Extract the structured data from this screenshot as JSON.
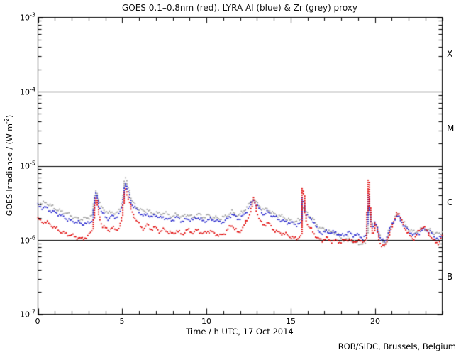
{
  "title": "GOES 0.1–0.8nm (red), LYRA Al (blue) & Zr (grey) proxy",
  "credit": "ROB/SIDC, Brussels, Belgium",
  "colors": {
    "red": "#e00000",
    "blue": "#2222cc",
    "grey": "#a0a0a0",
    "axis": "#000000",
    "background": "#ffffff"
  },
  "axes": {
    "x": {
      "label": "Time / h UTC, 17 Oct 2014",
      "range": [
        0,
        24
      ],
      "major_ticks": [
        0,
        5,
        10,
        15,
        20
      ],
      "minor_step": 1,
      "tick_labels": [
        "0",
        "5",
        "10",
        "15",
        "20"
      ]
    },
    "y": {
      "label_prefix": "GOES Irradiance / (W m",
      "label_sup": "-2",
      "label_suffix": ")",
      "scale": "log",
      "ticks": [
        {
          "base": "10",
          "exp": "-3"
        },
        {
          "base": "10",
          "exp": "-4"
        },
        {
          "base": "10",
          "exp": "-5"
        },
        {
          "base": "10",
          "exp": "-6"
        },
        {
          "base": "10",
          "exp": "-7"
        }
      ]
    }
  },
  "flare_classes": [
    {
      "label": "X",
      "band_exp": [
        -4,
        -3
      ]
    },
    {
      "label": "M",
      "band_exp": [
        -5,
        -4
      ]
    },
    {
      "label": "C",
      "band_exp": [
        -6,
        -5
      ]
    },
    {
      "label": "B",
      "band_exp": [
        -7,
        -6
      ]
    }
  ],
  "reference_lines_flux": [
    0.0001,
    1e-05,
    1e-06
  ],
  "chart_data": {
    "type": "scatter",
    "title": "GOES 0.1–0.8nm (red), LYRA Al (blue) & Zr (grey) proxy",
    "xlabel": "Time / h UTC, 17 Oct 2014",
    "ylabel": "GOES Irradiance / (W m^-2)",
    "xlim": [
      0,
      24
    ],
    "ylim_flux": [
      1e-07,
      0.001
    ],
    "y_log": true,
    "grid": false,
    "legend": "in title (colors)",
    "point_unit_flux": "1e-6 W m^-2",
    "series": [
      {
        "name": "GOES 0.1-0.8nm",
        "color_key": "red",
        "points": [
          [
            0,
            1.95
          ],
          [
            0.25,
            1.75
          ],
          [
            0.45,
            1.8
          ],
          [
            0.7,
            1.6
          ],
          [
            1.0,
            1.45
          ],
          [
            1.4,
            1.3
          ],
          [
            1.8,
            1.17
          ],
          [
            2.2,
            1.1
          ],
          [
            2.6,
            1.05
          ],
          [
            2.95,
            1.1
          ],
          [
            3.2,
            1.3
          ],
          [
            3.42,
            3.9
          ],
          [
            3.6,
            2.2
          ],
          [
            3.8,
            1.6
          ],
          [
            4.0,
            1.45
          ],
          [
            4.2,
            1.32
          ],
          [
            4.4,
            1.45
          ],
          [
            4.65,
            1.35
          ],
          [
            4.85,
            1.55
          ],
          [
            5.0,
            2.2
          ],
          [
            5.15,
            5.5
          ],
          [
            5.35,
            3.6
          ],
          [
            5.55,
            2.4
          ],
          [
            5.8,
            1.9
          ],
          [
            6.1,
            1.55
          ],
          [
            6.3,
            1.4
          ],
          [
            6.5,
            1.6
          ],
          [
            6.75,
            1.35
          ],
          [
            7.0,
            1.5
          ],
          [
            7.25,
            1.3
          ],
          [
            7.5,
            1.4
          ],
          [
            7.75,
            1.25
          ],
          [
            8.0,
            1.2
          ],
          [
            8.25,
            1.35
          ],
          [
            8.55,
            1.2
          ],
          [
            8.9,
            1.35
          ],
          [
            9.2,
            1.25
          ],
          [
            9.5,
            1.4
          ],
          [
            9.8,
            1.2
          ],
          [
            10.1,
            1.3
          ],
          [
            10.45,
            1.25
          ],
          [
            10.8,
            1.15
          ],
          [
            11.15,
            1.25
          ],
          [
            11.5,
            1.6
          ],
          [
            11.9,
            1.25
          ],
          [
            12.2,
            1.5
          ],
          [
            12.5,
            2.0
          ],
          [
            12.8,
            3.7
          ],
          [
            13.0,
            2.4
          ],
          [
            13.2,
            1.8
          ],
          [
            13.4,
            1.55
          ],
          [
            13.65,
            1.7
          ],
          [
            13.9,
            1.45
          ],
          [
            14.2,
            1.3
          ],
          [
            14.6,
            1.2
          ],
          [
            15.0,
            1.1
          ],
          [
            15.35,
            1.05
          ],
          [
            15.6,
            1.15
          ],
          [
            15.7,
            6.5
          ],
          [
            15.85,
            2.1
          ],
          [
            16.05,
            1.5
          ],
          [
            16.3,
            1.35
          ],
          [
            16.6,
            1.05
          ],
          [
            16.9,
            0.98
          ],
          [
            17.15,
            1.05
          ],
          [
            17.4,
            0.97
          ],
          [
            17.7,
            1.0
          ],
          [
            17.95,
            0.93
          ],
          [
            18.2,
            0.98
          ],
          [
            18.45,
            1.02
          ],
          [
            18.7,
            0.95
          ],
          [
            18.95,
            1.0
          ],
          [
            19.2,
            0.93
          ],
          [
            19.45,
            1.0
          ],
          [
            19.6,
            6.0
          ],
          [
            19.75,
            1.55
          ],
          [
            19.9,
            1.2
          ],
          [
            20.02,
            1.8
          ],
          [
            20.15,
            1.25
          ],
          [
            20.35,
            0.85
          ],
          [
            20.6,
            0.8
          ],
          [
            20.8,
            1.15
          ],
          [
            21.0,
            1.5
          ],
          [
            21.15,
            1.8
          ],
          [
            21.3,
            2.5
          ],
          [
            21.45,
            2.15
          ],
          [
            21.65,
            1.65
          ],
          [
            21.85,
            1.35
          ],
          [
            22.05,
            1.15
          ],
          [
            22.35,
            1.05
          ],
          [
            22.65,
            1.35
          ],
          [
            22.85,
            1.5
          ],
          [
            23.05,
            1.35
          ],
          [
            23.3,
            1.15
          ],
          [
            23.55,
            0.95
          ],
          [
            23.8,
            0.9
          ],
          [
            24,
            1.1
          ]
        ]
      },
      {
        "name": "LYRA Al proxy",
        "color_key": "blue",
        "points": [
          [
            0,
            2.85
          ],
          [
            0.25,
            2.7
          ],
          [
            0.45,
            2.75
          ],
          [
            0.7,
            2.55
          ],
          [
            1.0,
            2.35
          ],
          [
            1.4,
            2.1
          ],
          [
            1.8,
            1.9
          ],
          [
            2.2,
            1.75
          ],
          [
            2.6,
            1.63
          ],
          [
            2.95,
            1.68
          ],
          [
            3.2,
            1.85
          ],
          [
            3.42,
            4.4
          ],
          [
            3.6,
            2.95
          ],
          [
            3.8,
            2.3
          ],
          [
            4.0,
            2.1
          ],
          [
            4.2,
            1.95
          ],
          [
            4.4,
            2.1
          ],
          [
            4.65,
            2.0
          ],
          [
            4.85,
            2.2
          ],
          [
            5.0,
            2.9
          ],
          [
            5.15,
            6.2
          ],
          [
            5.35,
            4.4
          ],
          [
            5.55,
            3.1
          ],
          [
            5.8,
            2.6
          ],
          [
            6.1,
            2.25
          ],
          [
            6.3,
            2.1
          ],
          [
            6.5,
            2.3
          ],
          [
            6.75,
            2.0
          ],
          [
            7.0,
            2.15
          ],
          [
            7.25,
            1.95
          ],
          [
            7.5,
            2.05
          ],
          [
            7.75,
            1.9
          ],
          [
            8.0,
            1.85
          ],
          [
            8.25,
            2.0
          ],
          [
            8.55,
            1.8
          ],
          [
            8.9,
            1.95
          ],
          [
            9.2,
            1.85
          ],
          [
            9.5,
            2.0
          ],
          [
            9.8,
            1.8
          ],
          [
            10.1,
            1.9
          ],
          [
            10.45,
            1.85
          ],
          [
            10.8,
            1.72
          ],
          [
            11.15,
            1.85
          ],
          [
            11.5,
            2.2
          ],
          [
            11.9,
            1.9
          ],
          [
            12.2,
            2.15
          ],
          [
            12.5,
            2.7
          ],
          [
            12.8,
            3.4
          ],
          [
            13.0,
            2.9
          ],
          [
            13.2,
            2.5
          ],
          [
            13.4,
            2.25
          ],
          [
            13.65,
            2.4
          ],
          [
            13.9,
            2.1
          ],
          [
            14.2,
            1.95
          ],
          [
            14.6,
            1.8
          ],
          [
            15.0,
            1.68
          ],
          [
            15.35,
            1.6
          ],
          [
            15.6,
            1.68
          ],
          [
            15.7,
            4.5
          ],
          [
            15.85,
            2.4
          ],
          [
            16.05,
            2.0
          ],
          [
            16.3,
            1.85
          ],
          [
            16.6,
            1.35
          ],
          [
            16.9,
            1.25
          ],
          [
            17.15,
            1.32
          ],
          [
            17.4,
            1.22
          ],
          [
            17.7,
            1.27
          ],
          [
            17.95,
            1.15
          ],
          [
            18.2,
            1.2
          ],
          [
            18.45,
            1.25
          ],
          [
            18.7,
            1.15
          ],
          [
            18.95,
            1.18
          ],
          [
            19.3,
            1.08
          ],
          [
            19.5,
            1.15
          ],
          [
            19.6,
            4.0
          ],
          [
            19.75,
            1.8
          ],
          [
            19.9,
            1.35
          ],
          [
            20.02,
            1.8
          ],
          [
            20.15,
            1.4
          ],
          [
            20.35,
            1.02
          ],
          [
            20.6,
            0.95
          ],
          [
            20.8,
            1.25
          ],
          [
            21.0,
            1.55
          ],
          [
            21.15,
            1.8
          ],
          [
            21.3,
            2.15
          ],
          [
            21.45,
            2.0
          ],
          [
            21.65,
            1.68
          ],
          [
            21.85,
            1.45
          ],
          [
            22.05,
            1.28
          ],
          [
            22.35,
            1.15
          ],
          [
            22.65,
            1.28
          ],
          [
            22.85,
            1.4
          ],
          [
            23.05,
            1.35
          ],
          [
            23.3,
            1.25
          ],
          [
            23.55,
            1.1
          ],
          [
            23.8,
            1.05
          ],
          [
            24,
            1.15
          ]
        ]
      },
      {
        "name": "LYRA Zr proxy",
        "color_key": "grey",
        "points": [
          [
            0,
            3.25
          ],
          [
            0.25,
            3.1
          ],
          [
            0.45,
            3.15
          ],
          [
            0.7,
            2.95
          ],
          [
            1.0,
            2.7
          ],
          [
            1.4,
            2.42
          ],
          [
            1.8,
            2.2
          ],
          [
            2.2,
            2.02
          ],
          [
            2.6,
            1.9
          ],
          [
            2.95,
            1.95
          ],
          [
            3.2,
            2.15
          ],
          [
            3.42,
            5.0
          ],
          [
            3.6,
            3.4
          ],
          [
            3.8,
            2.65
          ],
          [
            4.0,
            2.45
          ],
          [
            4.2,
            2.25
          ],
          [
            4.4,
            2.4
          ],
          [
            4.65,
            2.3
          ],
          [
            4.85,
            2.55
          ],
          [
            5.0,
            3.35
          ],
          [
            5.15,
            7.0
          ],
          [
            5.35,
            5.0
          ],
          [
            5.55,
            3.5
          ],
          [
            5.8,
            2.9
          ],
          [
            6.1,
            2.55
          ],
          [
            6.3,
            2.35
          ],
          [
            6.5,
            2.6
          ],
          [
            6.75,
            2.25
          ],
          [
            7.0,
            2.4
          ],
          [
            7.25,
            2.2
          ],
          [
            7.5,
            2.3
          ],
          [
            7.75,
            2.15
          ],
          [
            8.0,
            2.1
          ],
          [
            8.25,
            2.25
          ],
          [
            8.55,
            2.0
          ],
          [
            8.9,
            2.2
          ],
          [
            9.2,
            2.05
          ],
          [
            9.5,
            2.25
          ],
          [
            9.8,
            2.0
          ],
          [
            10.1,
            2.15
          ],
          [
            10.45,
            2.05
          ],
          [
            10.8,
            1.92
          ],
          [
            11.15,
            2.05
          ],
          [
            11.5,
            2.45
          ],
          [
            11.9,
            2.1
          ],
          [
            12.2,
            2.4
          ],
          [
            12.5,
            3.0
          ],
          [
            12.8,
            3.6
          ],
          [
            13.0,
            3.1
          ],
          [
            13.2,
            2.75
          ],
          [
            13.4,
            2.5
          ],
          [
            13.65,
            2.65
          ],
          [
            13.9,
            2.35
          ],
          [
            14.2,
            2.15
          ],
          [
            14.6,
            2.0
          ],
          [
            15.0,
            1.85
          ],
          [
            15.35,
            1.78
          ],
          [
            15.6,
            1.85
          ],
          [
            15.7,
            2.9
          ],
          [
            15.85,
            2.5
          ],
          [
            16.05,
            2.2
          ],
          [
            16.3,
            2.0
          ],
          [
            16.6,
            1.5
          ],
          [
            16.9,
            1.38
          ],
          [
            17.15,
            1.4
          ],
          [
            17.4,
            1.28
          ],
          [
            17.7,
            1.25
          ],
          [
            17.95,
            1.05
          ],
          [
            18.2,
            1.0
          ],
          [
            18.45,
            1.1
          ],
          [
            18.7,
            0.95
          ],
          [
            18.95,
            0.9
          ],
          [
            19.3,
            0.87
          ],
          [
            19.5,
            0.95
          ],
          [
            19.6,
            2.9
          ],
          [
            19.75,
            1.8
          ],
          [
            19.9,
            1.4
          ],
          [
            20.02,
            1.8
          ],
          [
            20.15,
            1.42
          ],
          [
            20.35,
            1.05
          ],
          [
            20.6,
            0.85
          ],
          [
            20.8,
            1.3
          ],
          [
            21.0,
            1.62
          ],
          [
            21.15,
            1.88
          ],
          [
            21.3,
            2.2
          ],
          [
            21.45,
            2.08
          ],
          [
            21.65,
            1.8
          ],
          [
            21.85,
            1.58
          ],
          [
            22.05,
            1.4
          ],
          [
            22.35,
            1.25
          ],
          [
            22.65,
            1.32
          ],
          [
            22.85,
            1.45
          ],
          [
            23.05,
            1.42
          ],
          [
            23.3,
            1.35
          ],
          [
            23.55,
            1.22
          ],
          [
            23.8,
            1.18
          ],
          [
            24,
            1.3
          ]
        ]
      }
    ]
  }
}
